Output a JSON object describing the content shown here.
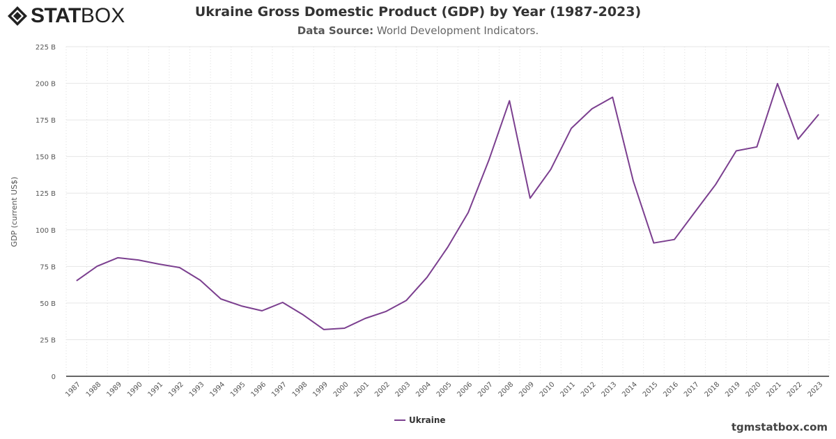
{
  "logo": {
    "bold": "STAT",
    "thin": "BOX"
  },
  "header": {
    "title": "Ukraine Gross Domestic Product (GDP) by Year (1987-2023)",
    "subtitle_label": "Data Source:",
    "subtitle_text": " World Development Indicators."
  },
  "credit": "tgmstatbox.com",
  "chart_data": {
    "type": "line",
    "title": "Ukraine Gross Domestic Product (GDP) by Year (1987-2023)",
    "ylabel": "GDP (current US$)",
    "xlabel": "",
    "ylim": [
      0,
      225
    ],
    "yticks": [
      0,
      25,
      50,
      75,
      100,
      125,
      150,
      175,
      200,
      225
    ],
    "ytick_labels": [
      "0",
      "25 B",
      "50 B",
      "75 B",
      "100 B",
      "125 B",
      "150 B",
      "175 B",
      "200 B",
      "225 B"
    ],
    "categories": [
      "1987",
      "1988",
      "1989",
      "1990",
      "1991",
      "1992",
      "1993",
      "1994",
      "1995",
      "1996",
      "1997",
      "1998",
      "1999",
      "2000",
      "2001",
      "2002",
      "2003",
      "2004",
      "2005",
      "2006",
      "2007",
      "2008",
      "2009",
      "2010",
      "2011",
      "2012",
      "2013",
      "2014",
      "2015",
      "2016",
      "2017",
      "2018",
      "2019",
      "2020",
      "2021",
      "2022",
      "2023"
    ],
    "series": [
      {
        "name": "Ukraine",
        "color": "#7b3f8f",
        "values": [
          65.2,
          75.1,
          80.9,
          79.4,
          76.6,
          74.2,
          65.6,
          52.8,
          48.0,
          44.7,
          50.4,
          41.9,
          31.9,
          32.8,
          39.5,
          44.2,
          51.8,
          67.5,
          88.0,
          111.8,
          147.5,
          188.1,
          121.6,
          141.2,
          169.3,
          182.6,
          190.5,
          133.5,
          91.0,
          93.4,
          112.2,
          130.9,
          153.9,
          156.6,
          199.8,
          161.9,
          178.8
        ]
      }
    ],
    "grid": true,
    "legend": "bottom-center"
  }
}
